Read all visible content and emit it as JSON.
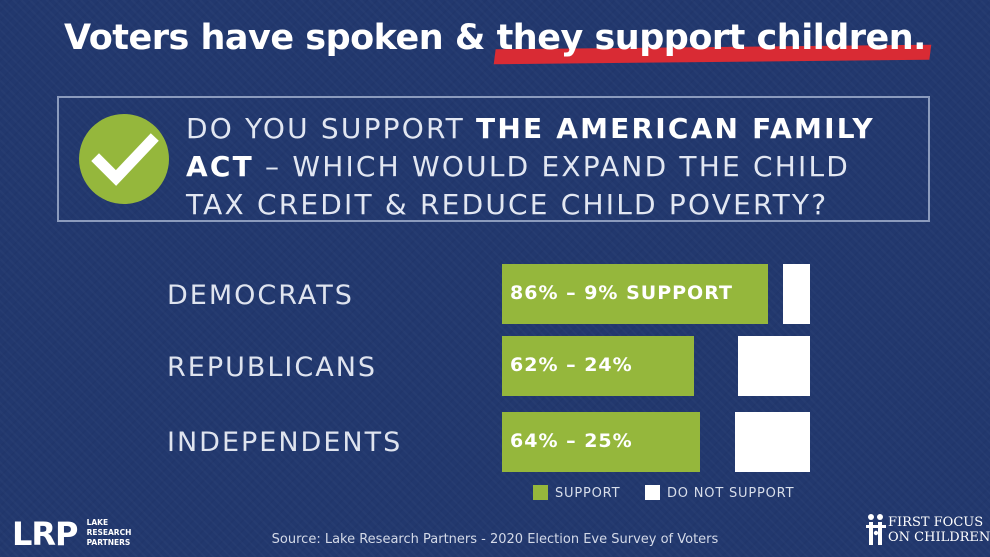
{
  "title": {
    "part1": "Voters have spoken & ",
    "part2": "they support children.",
    "highlight_color": "#d92b34"
  },
  "question": {
    "text1": "DO YOU SUPPORT ",
    "bold1": "THE AMERICAN FAMILY ACT",
    "text2": " – WHICH WOULD EXPAND THE CHILD TAX CREDIT & REDUCE CHILD POVERTY?",
    "icon": "checkmark-icon"
  },
  "colors": {
    "background": "#22386e",
    "support": "#95b73c",
    "do_not_support": "#ffffff"
  },
  "chart_data": {
    "type": "bar",
    "orientation": "horizontal",
    "categories": [
      "DEMOCRATS",
      "REPUBLICANS",
      "INDEPENDENTS"
    ],
    "series": [
      {
        "name": "SUPPORT",
        "values": [
          86,
          62,
          64
        ],
        "color": "#95b73c"
      },
      {
        "name": "DO NOT SUPPORT",
        "values": [
          9,
          24,
          25
        ],
        "color": "#ffffff"
      }
    ],
    "data_labels": [
      "86% – 9% SUPPORT",
      "62% – 24%",
      "64% – 25%"
    ],
    "legend": {
      "position": "bottom",
      "entries": [
        "SUPPORT",
        "DO NOT SUPPORT"
      ]
    },
    "xlim": [
      0,
      100
    ],
    "grid": false
  },
  "source": "Source: Lake Research Partners - 2020 Election Eve Survey of Voters",
  "logos": {
    "lrp": {
      "mark": "LRP",
      "lines": [
        "LAKE",
        "RESEARCH",
        "PARTNERS"
      ]
    },
    "ffc": {
      "lines": [
        "FIRST FOCUS",
        "ON CHILDREN"
      ]
    }
  }
}
